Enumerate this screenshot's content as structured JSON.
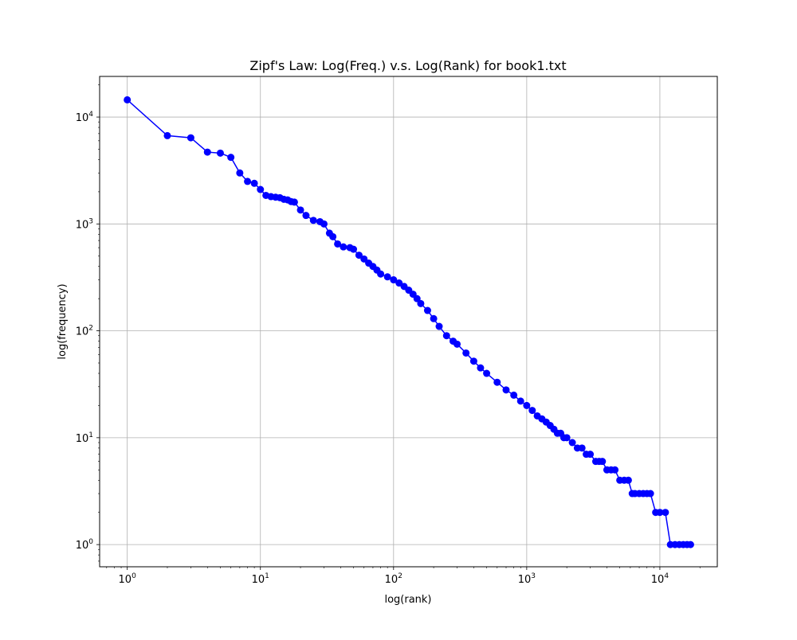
{
  "chart_data": {
    "type": "line",
    "title": "Zipf's Law: Log(Freq.) v.s. Log(Rank) for book1.txt",
    "xlabel": "log(rank)",
    "ylabel": "log(frequency)",
    "x_scale": "log",
    "y_scale": "log",
    "xlim": [
      0.62,
      27000
    ],
    "ylim": [
      0.62,
      24000
    ],
    "grid": true,
    "x_ticks": [
      {
        "value": 1,
        "mant": "10",
        "exp": "0"
      },
      {
        "value": 10,
        "mant": "10",
        "exp": "1"
      },
      {
        "value": 100,
        "mant": "10",
        "exp": "2"
      },
      {
        "value": 1000,
        "mant": "10",
        "exp": "3"
      },
      {
        "value": 10000,
        "mant": "10",
        "exp": "4"
      }
    ],
    "y_ticks": [
      {
        "value": 1,
        "mant": "10",
        "exp": "0"
      },
      {
        "value": 10,
        "mant": "10",
        "exp": "1"
      },
      {
        "value": 100,
        "mant": "10",
        "exp": "2"
      },
      {
        "value": 1000,
        "mant": "10",
        "exp": "3"
      },
      {
        "value": 10000,
        "mant": "10",
        "exp": "4"
      }
    ],
    "series": [
      {
        "color": "#0000ff",
        "marker": "circle",
        "x": [
          1,
          2,
          3,
          4,
          5,
          6,
          7,
          8,
          9,
          10,
          11,
          12,
          13,
          14,
          15,
          16,
          17,
          18,
          20,
          22,
          25,
          28,
          30,
          33,
          35,
          38,
          42,
          47,
          50,
          55,
          60,
          65,
          70,
          75,
          80,
          90,
          100,
          110,
          120,
          130,
          140,
          150,
          160,
          180,
          200,
          220,
          250,
          280,
          300,
          350,
          400,
          450,
          500,
          600,
          700,
          800,
          900,
          1000,
          1100,
          1200,
          1300,
          1400,
          1500,
          1600,
          1700,
          1800,
          1900,
          2000,
          2200,
          2400,
          2600,
          2800,
          3000,
          3300,
          3500,
          3700,
          4000,
          4300,
          4600,
          5000,
          5400,
          5800,
          6200,
          6500,
          7000,
          7500,
          8000,
          8500,
          9300,
          10000,
          11000,
          12000,
          13000,
          14000,
          15000,
          16000,
          17000
        ],
        "y": [
          14500,
          6700,
          6400,
          4700,
          4600,
          4200,
          3000,
          2500,
          2400,
          2100,
          1850,
          1800,
          1780,
          1760,
          1700,
          1680,
          1620,
          1600,
          1350,
          1200,
          1080,
          1050,
          1000,
          820,
          760,
          650,
          610,
          600,
          580,
          510,
          470,
          430,
          400,
          370,
          340,
          320,
          300,
          280,
          260,
          240,
          220,
          200,
          180,
          155,
          130,
          110,
          90,
          80,
          75,
          62,
          52,
          45,
          40,
          33,
          28,
          25,
          22,
          20,
          18,
          16,
          15,
          14,
          13,
          12,
          11,
          11,
          10,
          10,
          9,
          8,
          8,
          7,
          7,
          6,
          6,
          6,
          5,
          5,
          5,
          4,
          4,
          4,
          3,
          3,
          3,
          3,
          3,
          3,
          2,
          2,
          2,
          1,
          1,
          1,
          1,
          1,
          1
        ]
      }
    ]
  }
}
